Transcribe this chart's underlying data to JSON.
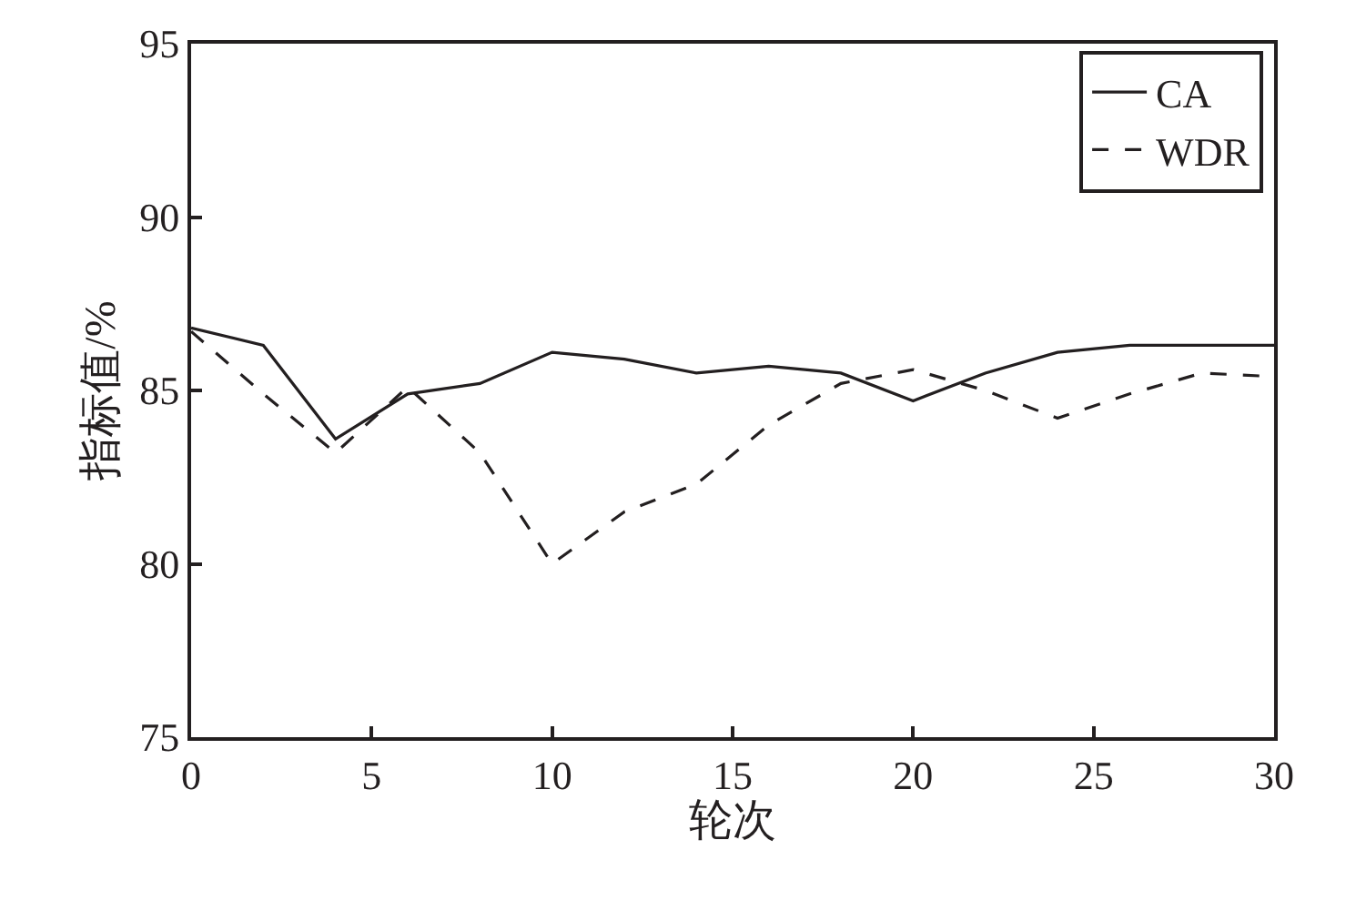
{
  "chart_data": {
    "type": "line",
    "xlabel": "轮次",
    "ylabel": "指标值/%",
    "x": [
      0,
      2,
      4,
      6,
      8,
      10,
      12,
      14,
      16,
      18,
      20,
      22,
      24,
      26,
      28,
      30
    ],
    "series": [
      {
        "name": "CA",
        "color": "#231f20",
        "line_style": "solid",
        "values": [
          86.8,
          86.3,
          83.6,
          84.9,
          85.2,
          86.1,
          85.9,
          85.5,
          85.7,
          85.5,
          84.7,
          85.5,
          86.1,
          86.3,
          86.3,
          86.3
        ]
      },
      {
        "name": "WDR",
        "color": "#231f20",
        "line_style": "dashed",
        "values": [
          86.7,
          84.9,
          83.2,
          85.1,
          83.2,
          80.0,
          81.5,
          82.3,
          84.0,
          85.2,
          85.6,
          85.0,
          84.2,
          84.9,
          85.5,
          85.4
        ]
      }
    ],
    "xlim": [
      0,
      30
    ],
    "xticks": [
      0,
      5,
      10,
      15,
      20,
      25,
      30
    ],
    "ylim": [
      75,
      95
    ],
    "yticks": [
      75,
      80,
      85,
      90,
      95
    ],
    "legend": "top right",
    "marker": "none"
  }
}
